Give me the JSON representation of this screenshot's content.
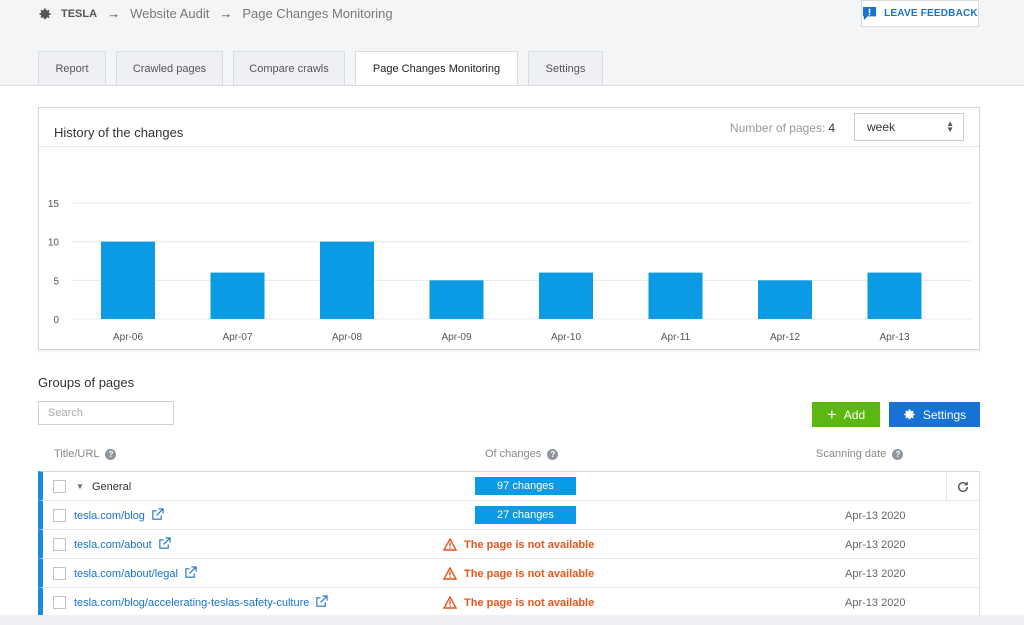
{
  "breadcrumb": {
    "project": "TESLA",
    "section": "Website Audit",
    "page": "Page Changes Monitoring"
  },
  "feedback": {
    "label": "LEAVE FEEDBACK"
  },
  "tabs": [
    {
      "label": "Report",
      "active": false
    },
    {
      "label": "Crawled pages",
      "active": false
    },
    {
      "label": "Compare crawls",
      "active": false
    },
    {
      "label": "Page Changes Monitoring",
      "active": true
    },
    {
      "label": "Settings",
      "active": false
    }
  ],
  "history": {
    "title": "History of the changes",
    "pages_label": "Number of pages:",
    "pages_value": "4",
    "period": "week"
  },
  "chart_data": {
    "type": "bar",
    "categories": [
      "Apr-06",
      "Apr-07",
      "Apr-08",
      "Apr-09",
      "Apr-10",
      "Apr-11",
      "Apr-12",
      "Apr-13"
    ],
    "values": [
      10,
      6,
      10,
      5,
      6,
      6,
      5,
      6
    ],
    "yticks": [
      0,
      5,
      10,
      15
    ],
    "ylim": [
      0,
      15
    ],
    "color": "#0a9be4",
    "grid": true
  },
  "groups": {
    "title": "Groups of pages",
    "search_placeholder": "Search",
    "add_label": "Add",
    "settings_label": "Settings",
    "columns": {
      "title": "Title/URL",
      "changes": "Of changes",
      "date": "Scanning date"
    },
    "group": {
      "name": "General",
      "changes": "97 changes"
    },
    "rows": [
      {
        "url": "tesla.com/blog",
        "changes": "27 changes",
        "status": "",
        "date": "Apr-13 2020"
      },
      {
        "url": "tesla.com/about",
        "changes": "",
        "status": "The page is not available",
        "date": "Apr-13 2020"
      },
      {
        "url": "tesla.com/about/legal",
        "changes": "",
        "status": "The page is not available",
        "date": "Apr-13 2020"
      },
      {
        "url": "tesla.com/blog/accelerating-teslas-safety-culture",
        "changes": "",
        "status": "The page is not available",
        "date": "Apr-13 2020"
      }
    ]
  }
}
